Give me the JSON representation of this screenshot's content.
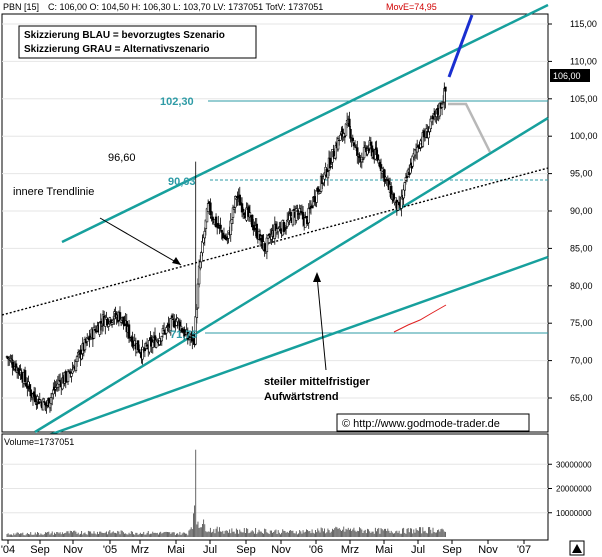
{
  "header": {
    "symbol": "PBN [15]",
    "stats": "C: 106,00  O: 104,50  H: 106,30  L: 103,70  LV: 1737051  TotV: 1737051",
    "move": "MovE=74,95"
  },
  "legend": {
    "line1": "Skizzierung BLAU = bevorzugtes Szenario",
    "line2": "Skizzierung GRAU = Alternativszenario"
  },
  "annotations": {
    "level_high": "102,30",
    "level_mid": "90,63",
    "level_low": "71,75",
    "level_peak": "96,60",
    "inner_trendline": "innere Trendlinie",
    "uptrend_1": "steiler mittelfristiger",
    "uptrend_2": "Aufwärtstrend",
    "copyright": "© http://www.godmode-trader.de",
    "last_price": "106,00",
    "volume_label": "Volume=1737051"
  },
  "chart_data": {
    "type": "candlestick",
    "price_ticks": [
      "115,00",
      "110,00",
      "105,00",
      "100,00",
      "95,00",
      "90,00",
      "85,00",
      "80,00",
      "75,00",
      "70,00",
      "65,00"
    ],
    "volume_ticks": [
      "30000000",
      "20000000",
      "10000000"
    ],
    "x_ticks": [
      "'04",
      "Sep",
      "Nov",
      "'05",
      "Mrz",
      "Mai",
      "Jul",
      "Sep",
      "Nov",
      "'06",
      "Mrz",
      "Mai",
      "Jul",
      "Sep",
      "Nov",
      "'07"
    ],
    "ylim": [
      62,
      117
    ],
    "horizontal_levels": [
      102.3,
      90.63,
      71.75
    ],
    "last_close": 106.0,
    "close_anchors": [
      [
        0,
        70.5
      ],
      [
        12,
        68.5
      ],
      [
        22,
        65.5
      ],
      [
        35,
        64
      ],
      [
        45,
        67
      ],
      [
        55,
        68
      ],
      [
        65,
        71
      ],
      [
        75,
        73.5
      ],
      [
        85,
        75.5
      ],
      [
        100,
        76
      ],
      [
        110,
        73
      ],
      [
        120,
        71
      ],
      [
        130,
        72.5
      ],
      [
        140,
        74
      ],
      [
        150,
        75.5
      ],
      [
        160,
        73
      ],
      [
        166,
        73
      ],
      [
        170,
        82
      ],
      [
        178,
        90.5
      ],
      [
        186,
        88
      ],
      [
        195,
        86
      ],
      [
        203,
        92
      ],
      [
        211,
        90
      ],
      [
        220,
        87.5
      ],
      [
        228,
        85
      ],
      [
        237,
        87.5
      ],
      [
        246,
        88
      ],
      [
        256,
        90
      ],
      [
        265,
        88.5
      ],
      [
        272,
        92
      ],
      [
        282,
        95
      ],
      [
        292,
        99
      ],
      [
        302,
        101.5
      ],
      [
        311,
        97
      ],
      [
        321,
        98.5
      ],
      [
        330,
        96.5
      ],
      [
        338,
        93
      ],
      [
        347,
        90
      ],
      [
        355,
        95
      ],
      [
        364,
        99
      ],
      [
        372,
        100.5
      ],
      [
        382,
        103.5
      ],
      [
        388,
        106
      ]
    ],
    "volume_anchors": [
      [
        0,
        1.2
      ],
      [
        40,
        1.6
      ],
      [
        80,
        2
      ],
      [
        110,
        1.8
      ],
      [
        140,
        1.6
      ],
      [
        160,
        1.4
      ],
      [
        166,
        9
      ],
      [
        167,
        36
      ],
      [
        168,
        7
      ],
      [
        180,
        3
      ],
      [
        200,
        2.5
      ],
      [
        230,
        2.5
      ],
      [
        250,
        2
      ],
      [
        270,
        2.5
      ],
      [
        300,
        3
      ],
      [
        330,
        2.5
      ],
      [
        350,
        2.5
      ],
      [
        380,
        3
      ],
      [
        388,
        2
      ]
    ],
    "volume_ylim": [
      0,
      40000000
    ]
  }
}
